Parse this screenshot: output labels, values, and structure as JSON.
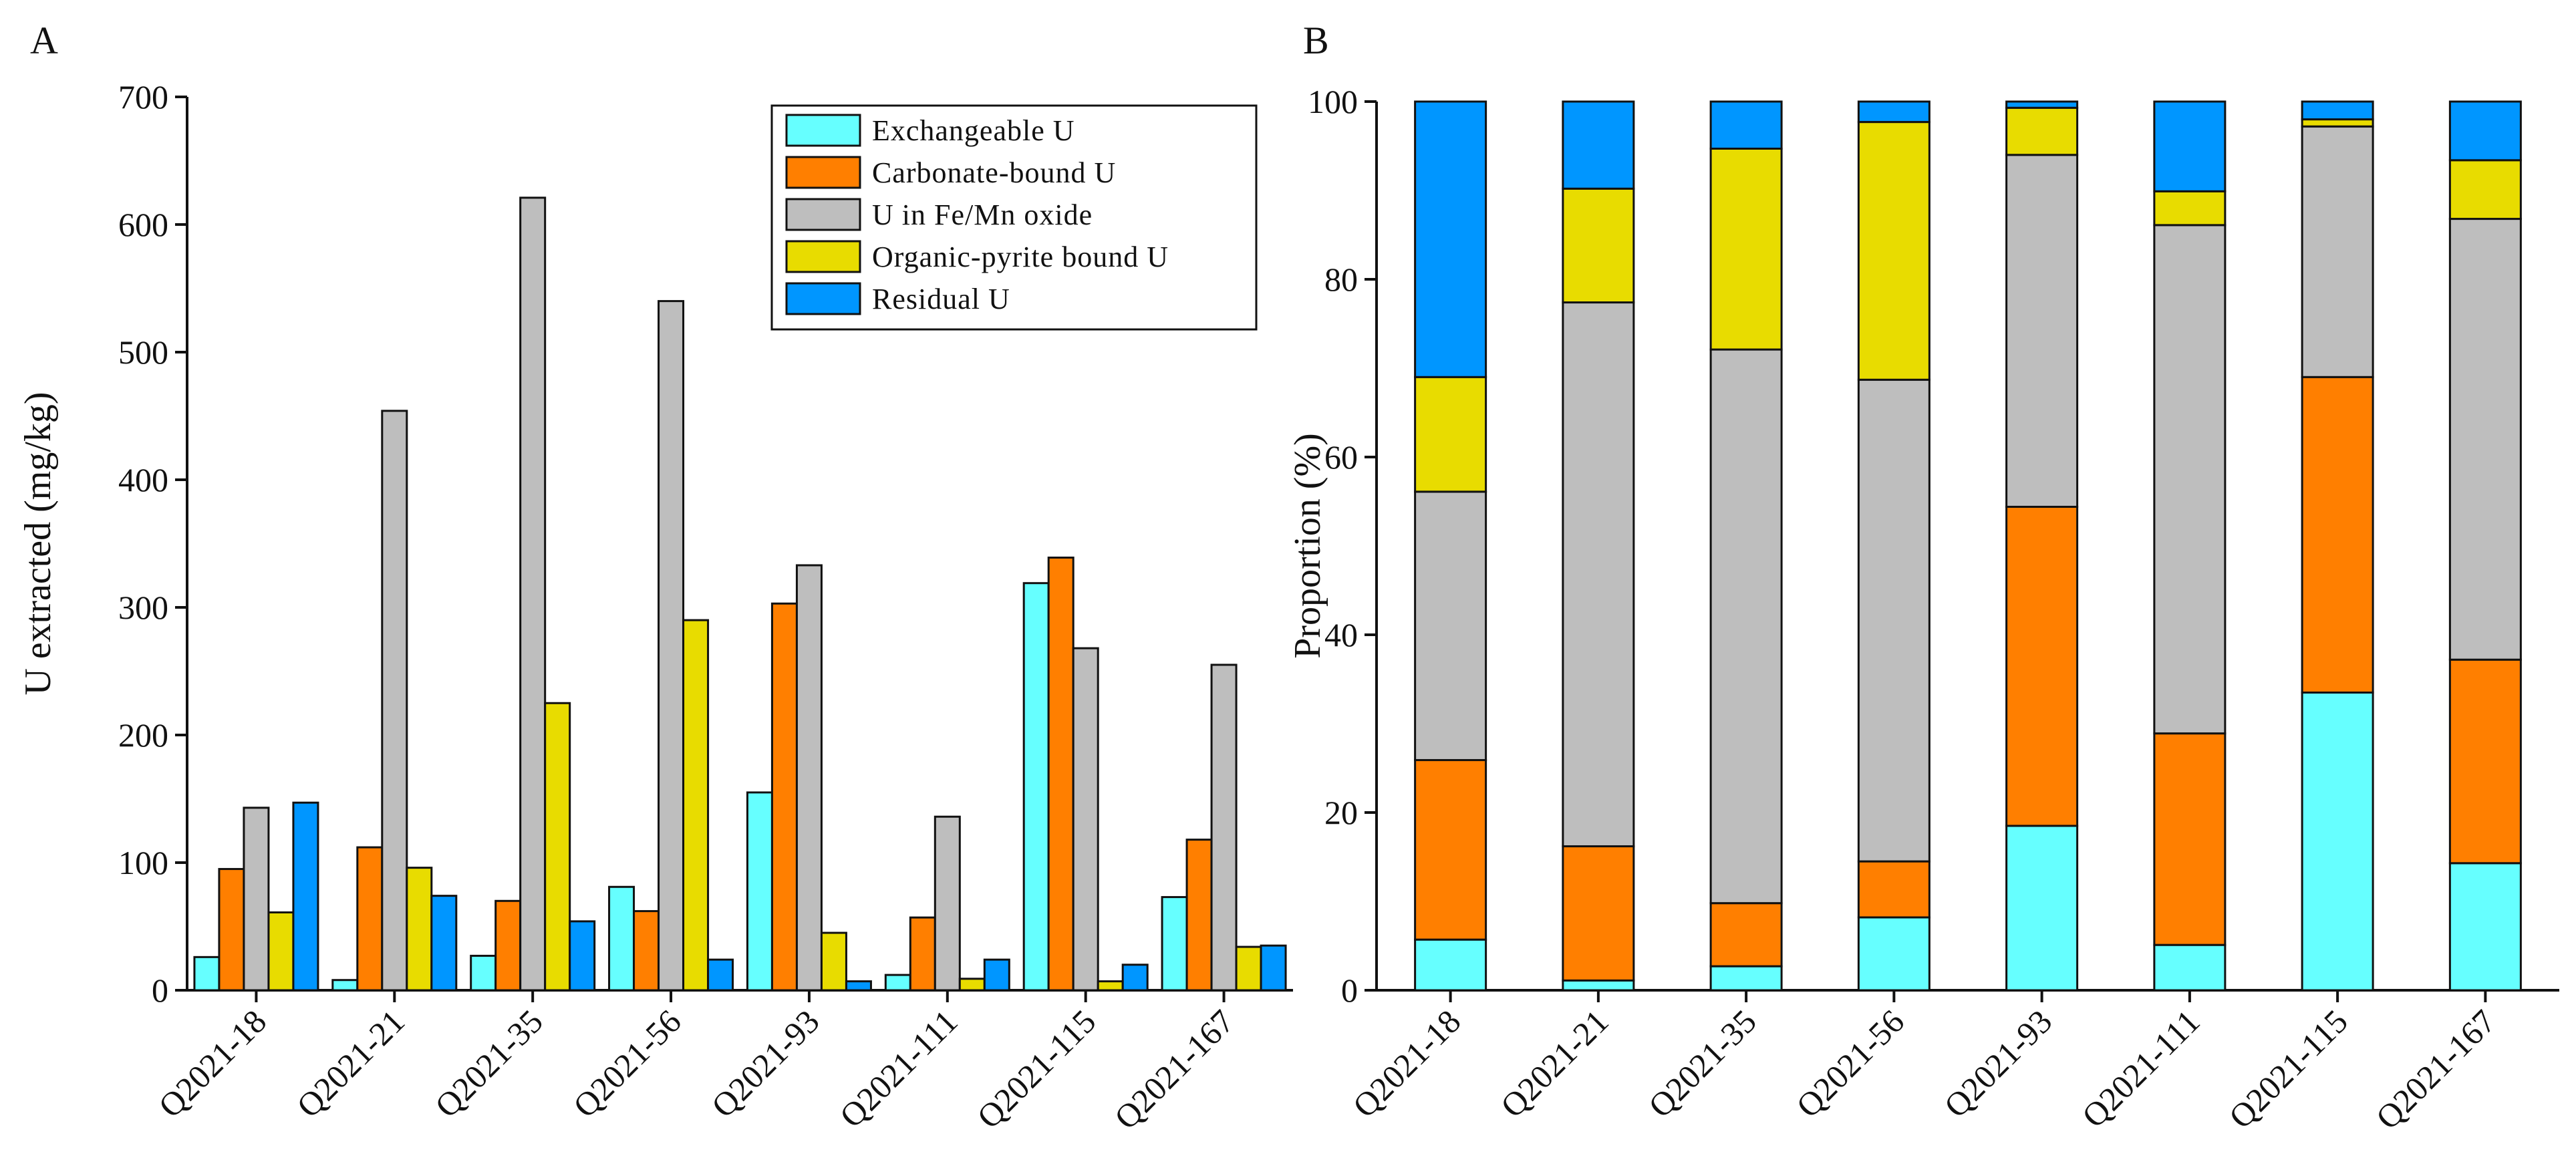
{
  "panels": {
    "a_label": "A",
    "b_label": "B"
  },
  "chart_data": [
    {
      "type": "bar",
      "ylabel": "U extracted (mg/kg)",
      "ylim": [
        0,
        700
      ],
      "yticks": [
        0,
        100,
        200,
        300,
        400,
        500,
        600,
        700
      ],
      "legend": "top-right",
      "categories": [
        "Q2021-18",
        "Q2021-21",
        "Q2021-35",
        "Q2021-56",
        "Q2021-93",
        "Q2021-111",
        "Q2021-115",
        "Q2021-167"
      ],
      "series": [
        {
          "name": "Exchangeable U",
          "color": "#66ffff",
          "values": [
            26,
            8,
            27,
            81,
            155,
            12,
            319,
            73
          ]
        },
        {
          "name": "Carbonate-bound U",
          "color": "#ff7f00",
          "values": [
            95,
            112,
            70,
            62,
            303,
            57,
            339,
            118
          ]
        },
        {
          "name": "U in Fe/Mn oxide",
          "color": "#bebebe",
          "values": [
            143,
            454,
            621,
            540,
            333,
            136,
            268,
            255
          ]
        },
        {
          "name": "Organic-pyrite bound U",
          "color": "#e8dc00",
          "values": [
            61,
            96,
            225,
            290,
            45,
            9,
            7,
            34
          ]
        },
        {
          "name": "Residual U",
          "color": "#0096ff",
          "values": [
            147,
            74,
            54,
            24,
            7,
            24,
            20,
            35
          ]
        }
      ]
    },
    {
      "type": "bar",
      "stacked": true,
      "ylabel": "Proportion (%)",
      "ylim": [
        0,
        100
      ],
      "yticks": [
        0,
        20,
        40,
        60,
        80,
        100
      ],
      "categories": [
        "Q2021-18",
        "Q2021-21",
        "Q2021-35",
        "Q2021-56",
        "Q2021-93",
        "Q2021-111",
        "Q2021-115",
        "Q2021-167"
      ],
      "series": [
        {
          "name": "Exchangeable U",
          "color": "#66ffff",
          "values": [
            5.7,
            1.1,
            2.7,
            8.2,
            18.5,
            5.1,
            33.5,
            14.3
          ]
        },
        {
          "name": "Carbonate-bound U",
          "color": "#ff7f00",
          "values": [
            20.2,
            15.1,
            7.1,
            6.3,
            35.9,
            23.8,
            35.5,
            22.9
          ]
        },
        {
          "name": "U in Fe/Mn oxide",
          "color": "#bebebe",
          "values": [
            30.2,
            61.2,
            62.3,
            54.2,
            39.6,
            57.2,
            28.2,
            49.6
          ]
        },
        {
          "name": "Organic-pyrite bound U",
          "color": "#e8dc00",
          "values": [
            12.9,
            12.8,
            22.6,
            29.0,
            5.3,
            3.8,
            0.8,
            6.6
          ]
        },
        {
          "name": "Residual U",
          "color": "#0096ff",
          "values": [
            31.0,
            9.8,
            5.3,
            2.3,
            0.7,
            10.1,
            2.0,
            6.6
          ]
        }
      ]
    }
  ]
}
